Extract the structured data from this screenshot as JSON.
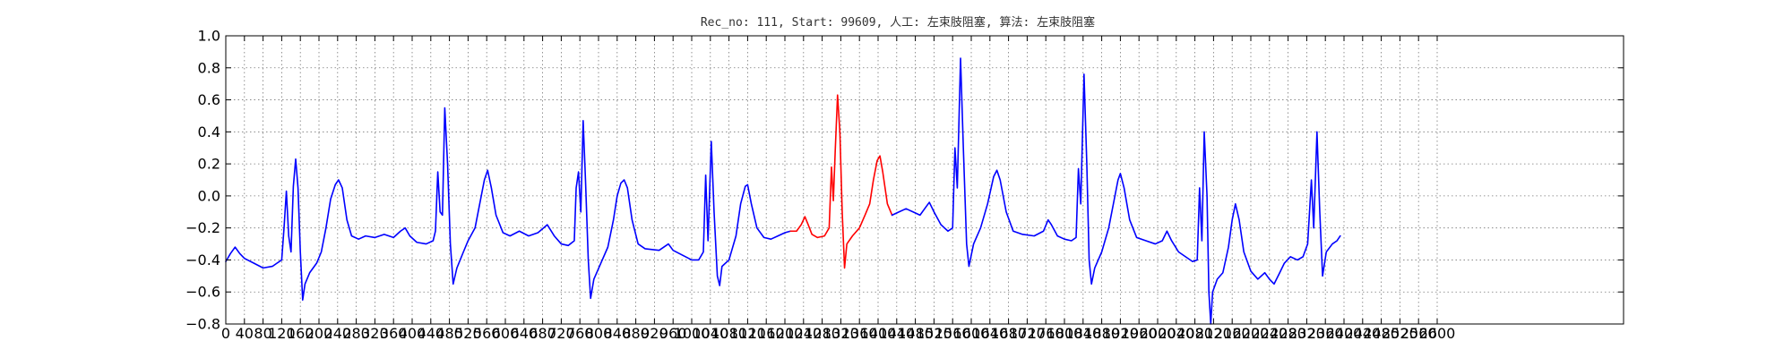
{
  "chart_data": {
    "type": "line",
    "title": "Rec_no: 111, Start: 99609, 人工: 左束肢阻塞, 算法: 左束肢阻塞",
    "xlabel": "",
    "ylabel": "",
    "xlim": [
      0,
      3000
    ],
    "ylim": [
      -0.8,
      1.0
    ],
    "grid": true,
    "yticks": [
      1.0,
      0.8,
      0.6,
      0.4,
      0.2,
      0.0,
      -0.2,
      -0.4,
      -0.6,
      -0.8
    ],
    "ytick_labels": [
      "1.0",
      "0.8",
      "0.6",
      "0.4",
      "0.2",
      "0.0",
      "−0.2",
      "−0.4",
      "−0.6",
      "−0.8"
    ],
    "xticks": [
      0,
      40,
      80,
      120,
      160,
      200,
      240,
      280,
      320,
      360,
      400,
      440,
      480,
      520,
      560,
      600,
      640,
      680,
      720,
      760,
      800,
      840,
      880,
      920,
      960,
      1000,
      1040,
      1080,
      1120,
      1160,
      1200,
      1240,
      1280,
      1320,
      1360,
      1400,
      1440,
      1480,
      1520,
      1560,
      1600,
      1640,
      1680,
      1720,
      1760,
      1800,
      1840,
      1880,
      1920,
      1960,
      2000,
      2040,
      2080,
      2120,
      2160,
      2200,
      2240,
      2280,
      2320,
      2360,
      2400,
      2440,
      2480,
      2520,
      2560,
      2600
    ],
    "xtick_labels": [
      "0",
      "40",
      "80",
      "120",
      "160",
      "200",
      "240",
      "280",
      "320",
      "360",
      "400",
      "440",
      "480",
      "520",
      "560",
      "600",
      "640",
      "680",
      "720",
      "760",
      "800",
      "840",
      "880",
      "920",
      "960",
      "1000",
      "1040",
      "1080",
      "1120",
      "1160",
      "1200",
      "1240",
      "1280",
      "1320",
      "1360",
      "1400",
      "1440",
      "1480",
      "1520",
      "1560",
      "1600",
      "1640",
      "1680",
      "1720",
      "1760",
      "1800",
      "1840",
      "1880",
      "1920",
      "1960",
      "2000",
      "2040",
      "2080",
      "2120",
      "2160",
      "2200",
      "2240",
      "2280",
      "2320",
      "2360",
      "2400",
      "2440",
      "2480",
      "2520",
      "2560",
      "2600"
    ],
    "series": [
      {
        "color": "#0000ff",
        "points": [
          [
            0,
            -0.41
          ],
          [
            10,
            -0.36
          ],
          [
            20,
            -0.32
          ],
          [
            30,
            -0.36
          ],
          [
            40,
            -0.39
          ],
          [
            60,
            -0.42
          ],
          [
            80,
            -0.45
          ],
          [
            100,
            -0.44
          ],
          [
            110,
            -0.42
          ],
          [
            120,
            -0.4
          ],
          [
            125,
            -0.2
          ],
          [
            130,
            0.03
          ],
          [
            135,
            -0.25
          ],
          [
            140,
            -0.35
          ],
          [
            145,
            0.06
          ],
          [
            150,
            0.23
          ],
          [
            155,
            0.05
          ],
          [
            160,
            -0.35
          ],
          [
            165,
            -0.65
          ],
          [
            170,
            -0.55
          ],
          [
            180,
            -0.48
          ],
          [
            195,
            -0.42
          ],
          [
            205,
            -0.35
          ],
          [
            215,
            -0.2
          ],
          [
            225,
            -0.02
          ],
          [
            235,
            0.07
          ],
          [
            242,
            0.1
          ],
          [
            250,
            0.05
          ],
          [
            260,
            -0.15
          ],
          [
            270,
            -0.25
          ],
          [
            285,
            -0.27
          ],
          [
            300,
            -0.25
          ],
          [
            320,
            -0.26
          ],
          [
            340,
            -0.24
          ],
          [
            360,
            -0.26
          ],
          [
            375,
            -0.22
          ],
          [
            385,
            -0.2
          ],
          [
            395,
            -0.25
          ],
          [
            410,
            -0.29
          ],
          [
            430,
            -0.3
          ],
          [
            445,
            -0.28
          ],
          [
            450,
            -0.22
          ],
          [
            455,
            0.15
          ],
          [
            460,
            -0.1
          ],
          [
            465,
            -0.12
          ],
          [
            470,
            0.55
          ],
          [
            476,
            0.2
          ],
          [
            482,
            -0.3
          ],
          [
            488,
            -0.55
          ],
          [
            496,
            -0.45
          ],
          [
            510,
            -0.35
          ],
          [
            520,
            -0.28
          ],
          [
            535,
            -0.2
          ],
          [
            545,
            -0.05
          ],
          [
            555,
            0.1
          ],
          [
            562,
            0.16
          ],
          [
            570,
            0.05
          ],
          [
            580,
            -0.12
          ],
          [
            595,
            -0.23
          ],
          [
            610,
            -0.25
          ],
          [
            630,
            -0.22
          ],
          [
            650,
            -0.25
          ],
          [
            670,
            -0.23
          ],
          [
            690,
            -0.18
          ],
          [
            705,
            -0.25
          ],
          [
            720,
            -0.3
          ],
          [
            735,
            -0.31
          ],
          [
            748,
            -0.28
          ],
          [
            752,
            0.05
          ],
          [
            757,
            0.15
          ],
          [
            762,
            -0.1
          ],
          [
            767,
            0.47
          ],
          [
            772,
            0.1
          ],
          [
            778,
            -0.4
          ],
          [
            783,
            -0.64
          ],
          [
            790,
            -0.52
          ],
          [
            805,
            -0.42
          ],
          [
            820,
            -0.32
          ],
          [
            832,
            -0.15
          ],
          [
            840,
            0.0
          ],
          [
            848,
            0.08
          ],
          [
            855,
            0.1
          ],
          [
            862,
            0.05
          ],
          [
            872,
            -0.15
          ],
          [
            885,
            -0.3
          ],
          [
            900,
            -0.33
          ],
          [
            930,
            -0.34
          ],
          [
            950,
            -0.3
          ],
          [
            960,
            -0.34
          ],
          [
            980,
            -0.37
          ],
          [
            1000,
            -0.4
          ],
          [
            1015,
            -0.4
          ],
          [
            1025,
            -0.35
          ],
          [
            1030,
            0.13
          ],
          [
            1035,
            -0.28
          ],
          [
            1042,
            0.34
          ],
          [
            1048,
            -0.1
          ],
          [
            1055,
            -0.5
          ],
          [
            1060,
            -0.56
          ],
          [
            1065,
            -0.44
          ],
          [
            1080,
            -0.4
          ],
          [
            1095,
            -0.25
          ],
          [
            1105,
            -0.05
          ],
          [
            1115,
            0.06
          ],
          [
            1120,
            0.07
          ],
          [
            1128,
            -0.05
          ],
          [
            1140,
            -0.2
          ],
          [
            1155,
            -0.26
          ],
          [
            1170,
            -0.27
          ],
          [
            1185,
            -0.25
          ],
          [
            1200,
            -0.23
          ],
          [
            1212,
            -0.22
          ]
        ]
      },
      {
        "color": "#ff0000",
        "points": [
          [
            1212,
            -0.22
          ],
          [
            1225,
            -0.22
          ],
          [
            1235,
            -0.18
          ],
          [
            1243,
            -0.13
          ],
          [
            1250,
            -0.18
          ],
          [
            1258,
            -0.24
          ],
          [
            1270,
            -0.26
          ],
          [
            1285,
            -0.25
          ],
          [
            1295,
            -0.2
          ],
          [
            1300,
            0.18
          ],
          [
            1304,
            -0.03
          ],
          [
            1308,
            0.28
          ],
          [
            1313,
            0.63
          ],
          [
            1318,
            0.4
          ],
          [
            1323,
            -0.1
          ],
          [
            1328,
            -0.45
          ],
          [
            1333,
            -0.3
          ],
          [
            1345,
            -0.25
          ],
          [
            1360,
            -0.2
          ],
          [
            1372,
            -0.12
          ],
          [
            1382,
            -0.05
          ],
          [
            1390,
            0.1
          ],
          [
            1398,
            0.22
          ],
          [
            1404,
            0.25
          ],
          [
            1410,
            0.15
          ],
          [
            1420,
            -0.05
          ],
          [
            1430,
            -0.12
          ]
        ]
      },
      {
        "color": "#0000ff",
        "points": [
          [
            1430,
            -0.12
          ],
          [
            1445,
            -0.1
          ],
          [
            1460,
            -0.08
          ],
          [
            1475,
            -0.1
          ],
          [
            1490,
            -0.12
          ],
          [
            1500,
            -0.08
          ],
          [
            1510,
            -0.04
          ],
          [
            1520,
            -0.1
          ],
          [
            1535,
            -0.18
          ],
          [
            1550,
            -0.22
          ],
          [
            1560,
            -0.2
          ],
          [
            1565,
            0.3
          ],
          [
            1570,
            0.05
          ],
          [
            1577,
            0.86
          ],
          [
            1583,
            0.3
          ],
          [
            1590,
            -0.3
          ],
          [
            1595,
            -0.44
          ],
          [
            1605,
            -0.3
          ],
          [
            1620,
            -0.2
          ],
          [
            1635,
            -0.05
          ],
          [
            1648,
            0.12
          ],
          [
            1655,
            0.16
          ],
          [
            1662,
            0.1
          ],
          [
            1675,
            -0.1
          ],
          [
            1690,
            -0.22
          ],
          [
            1710,
            -0.24
          ],
          [
            1735,
            -0.25
          ],
          [
            1755,
            -0.22
          ],
          [
            1765,
            -0.15
          ],
          [
            1772,
            -0.18
          ],
          [
            1785,
            -0.25
          ],
          [
            1800,
            -0.27
          ],
          [
            1815,
            -0.28
          ],
          [
            1825,
            -0.26
          ],
          [
            1830,
            0.17
          ],
          [
            1835,
            -0.05
          ],
          [
            1842,
            0.76
          ],
          [
            1848,
            0.2
          ],
          [
            1853,
            -0.4
          ],
          [
            1858,
            -0.55
          ],
          [
            1865,
            -0.45
          ],
          [
            1880,
            -0.35
          ],
          [
            1895,
            -0.2
          ],
          [
            1907,
            -0.02
          ],
          [
            1915,
            0.1
          ],
          [
            1920,
            0.14
          ],
          [
            1928,
            0.05
          ],
          [
            1940,
            -0.15
          ],
          [
            1955,
            -0.26
          ],
          [
            1975,
            -0.28
          ],
          [
            1995,
            -0.3
          ],
          [
            2010,
            -0.28
          ],
          [
            2020,
            -0.22
          ],
          [
            2030,
            -0.28
          ],
          [
            2045,
            -0.35
          ],
          [
            2060,
            -0.38
          ],
          [
            2075,
            -0.41
          ],
          [
            2085,
            -0.4
          ],
          [
            2090,
            0.05
          ],
          [
            2095,
            -0.28
          ],
          [
            2100,
            0.4
          ],
          [
            2106,
            0.0
          ],
          [
            2110,
            -0.6
          ],
          [
            2114,
            -0.8
          ],
          [
            2118,
            -0.6
          ],
          [
            2128,
            -0.52
          ],
          [
            2140,
            -0.48
          ],
          [
            2152,
            -0.32
          ],
          [
            2160,
            -0.15
          ],
          [
            2167,
            -0.05
          ],
          [
            2175,
            -0.15
          ],
          [
            2185,
            -0.35
          ],
          [
            2200,
            -0.47
          ],
          [
            2215,
            -0.52
          ],
          [
            2230,
            -0.48
          ],
          [
            2240,
            -0.52
          ],
          [
            2250,
            -0.55
          ],
          [
            2262,
            -0.48
          ],
          [
            2272,
            -0.42
          ],
          [
            2285,
            -0.38
          ],
          [
            2300,
            -0.4
          ],
          [
            2312,
            -0.38
          ],
          [
            2322,
            -0.3
          ],
          [
            2330,
            0.1
          ],
          [
            2335,
            -0.2
          ],
          [
            2342,
            0.4
          ],
          [
            2348,
            -0.1
          ],
          [
            2354,
            -0.5
          ],
          [
            2362,
            -0.35
          ],
          [
            2375,
            -0.3
          ],
          [
            2385,
            -0.28
          ],
          [
            2392,
            -0.25
          ]
        ]
      }
    ]
  }
}
